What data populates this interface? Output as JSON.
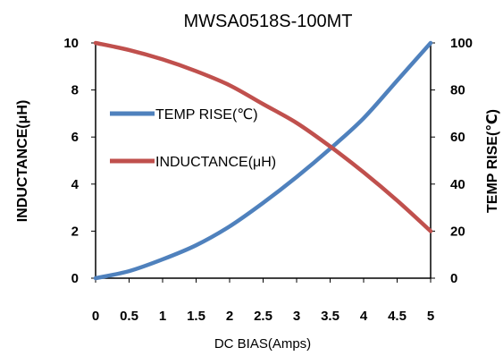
{
  "chart_data": {
    "type": "line",
    "title": "MWSA0518S-100MT",
    "xlabel": "DC  BIAS(Amps)",
    "ylabel": "INDUCTANCE(μH)",
    "y2label": "TEMP RISE(℃)",
    "x_ticks": [
      "0",
      "0.5",
      "1",
      "1.5",
      "2",
      "2.5",
      "3",
      "3.5",
      "4",
      "4.5",
      "5"
    ],
    "y_ticks": [
      "0",
      "2",
      "4",
      "6",
      "8",
      "10"
    ],
    "y2_ticks": [
      "0",
      "20",
      "40",
      "60",
      "80",
      "100"
    ],
    "xlim": [
      0,
      5
    ],
    "ylim": [
      0,
      10
    ],
    "y2lim": [
      0,
      100
    ],
    "grid": false,
    "legend_position": "left-middle",
    "series": [
      {
        "name": "TEMP RISE(℃)",
        "axis": "right",
        "color": "#4f81bd",
        "x": [
          0,
          0.5,
          1,
          1.5,
          2,
          2.5,
          3,
          3.5,
          4,
          4.5,
          5
        ],
        "values": [
          0,
          3,
          8,
          14,
          22,
          32,
          43,
          55,
          68,
          84,
          100
        ]
      },
      {
        "name": "INDUCTANCE(μH)",
        "axis": "left",
        "color": "#c0504d",
        "x": [
          0,
          0.5,
          1,
          1.5,
          2,
          2.5,
          3,
          3.5,
          4,
          4.5,
          5
        ],
        "values": [
          10,
          9.7,
          9.3,
          8.8,
          8.2,
          7.4,
          6.6,
          5.6,
          4.5,
          3.3,
          2.0
        ]
      }
    ]
  }
}
